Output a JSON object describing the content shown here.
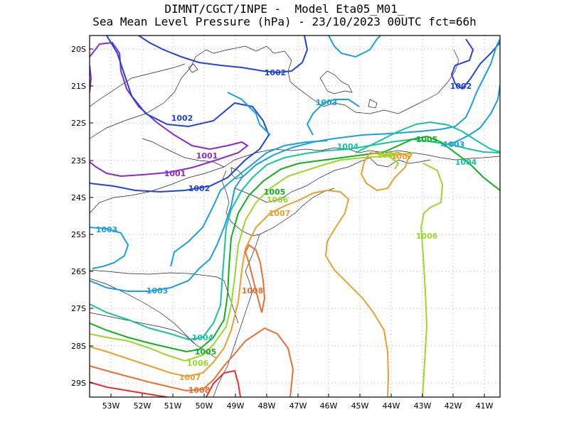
{
  "title": {
    "line1": "DIMNT/CGCT/INPE -  Model Eta05_M01_",
    "line2": "Sea Mean Level Pressure (hPa) - 23/10/2023 00UTC fct=66h"
  },
  "axes": {
    "lon_ticks": [
      "53W",
      "52W",
      "51W",
      "50W",
      "49W",
      "48W",
      "47W",
      "46W",
      "45W",
      "44W",
      "43W",
      "42W",
      "41W"
    ],
    "lat_ticks": [
      "20S",
      "21S",
      "22S",
      "23S",
      "24S",
      "25S",
      "26S",
      "27S",
      "28S",
      "29S"
    ],
    "grid": true
  },
  "contour_labels": [
    {
      "text": "1001",
      "color": "#8a2bd0"
    },
    {
      "text": "1001",
      "color": "#8a2bd0"
    },
    {
      "text": "1002",
      "color": "#2244dd"
    },
    {
      "text": "1002",
      "color": "#2244dd"
    },
    {
      "text": "1002",
      "color": "#2244dd"
    },
    {
      "text": "1002",
      "color": "#2244dd"
    },
    {
      "text": "1003",
      "color": "#1aa0e0"
    },
    {
      "text": "1003",
      "color": "#1aa0e0"
    },
    {
      "text": "1003",
      "color": "#1aa0e0"
    },
    {
      "text": "1003",
      "color": "#1aa0e0"
    },
    {
      "text": "1004",
      "color": "#16c4a0"
    },
    {
      "text": "1004",
      "color": "#16c4a0"
    },
    {
      "text": "1004",
      "color": "#16c4a0"
    },
    {
      "text": "1005",
      "color": "#10b020"
    },
    {
      "text": "1005",
      "color": "#10b020"
    },
    {
      "text": "1005",
      "color": "#10b020"
    },
    {
      "text": "1006",
      "color": "#9ad82a"
    },
    {
      "text": "1006",
      "color": "#9ad82a"
    },
    {
      "text": "1006",
      "color": "#9ad82a"
    },
    {
      "text": "1006",
      "color": "#9ad82a"
    },
    {
      "text": "1007",
      "color": "#e8a030"
    },
    {
      "text": "1007",
      "color": "#e8a030"
    },
    {
      "text": "1007",
      "color": "#e8a030"
    },
    {
      "text": "1008",
      "color": "#e87030"
    },
    {
      "text": "1008",
      "color": "#e87030"
    }
  ],
  "colors": {
    "c1001": "#8a2bd0",
    "c1002": "#2244dd",
    "c1003": "#1aa0e0",
    "c1004": "#16c4a0",
    "c1005": "#10b020",
    "c1006": "#9ad82a",
    "c1007": "#e8a030",
    "c1008": "#e87030",
    "c1009": "#e83030"
  }
}
